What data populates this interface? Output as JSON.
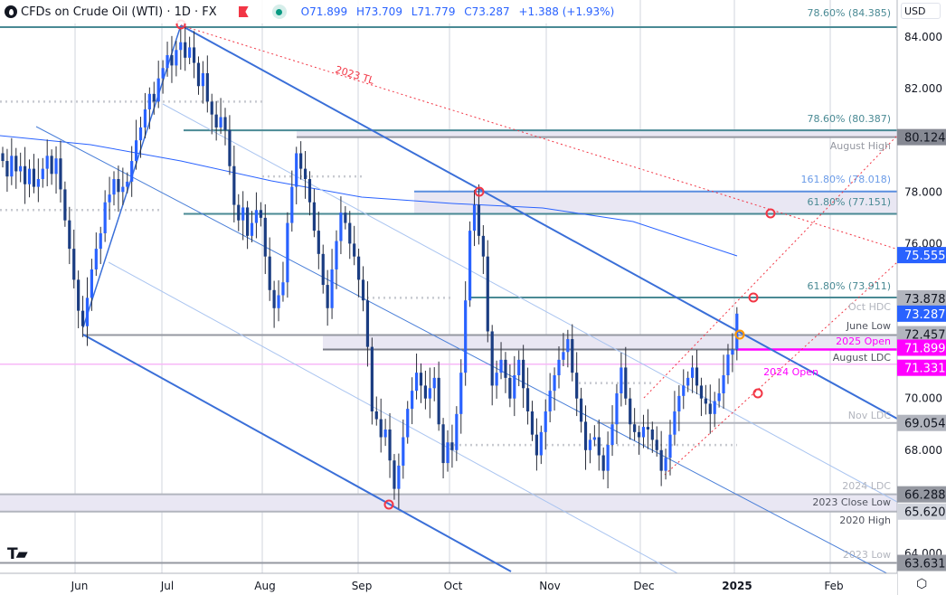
{
  "header": {
    "title": "CFDs on Crude Oil (WTI) · 1D · FX",
    "open": "O71.899",
    "high": "H73.709",
    "low": "L71.779",
    "close": "C73.287",
    "change": "+1.388 (+1.93%)"
  },
  "currency": "USD",
  "colors": {
    "up": "#2962ff",
    "down": "#1b3d82",
    "trendline": "#3a6fd8",
    "fib": "#4a8a94",
    "magenta": "#ff00ff",
    "red_marker": "#f23645",
    "orange_marker": "#ff9800"
  },
  "chart_data": {
    "type": "candlestick",
    "symbol": "CFDs on Crude Oil (WTI)",
    "timeframe": "1D",
    "ylim": [
      62.8,
      85
    ],
    "y_ticks": [
      "84.000",
      "82.000",
      "78.000",
      "76.000",
      "70.000",
      "68.000",
      "64.000"
    ],
    "x_ticks": [
      "Jun",
      "Jul",
      "Aug",
      "Sep",
      "Oct",
      "Nov",
      "Dec",
      "2025",
      "Feb"
    ],
    "closes": [
      79.2,
      78.6,
      79.4,
      78.8,
      79.0,
      78.3,
      78.9,
      78.2,
      78.5,
      78.9,
      79.4,
      78.7,
      79.3,
      78.1,
      76.9,
      75.8,
      74.6,
      73.4,
      72.8,
      73.9,
      75.0,
      75.8,
      76.4,
      77.6,
      77.9,
      78.5,
      78.0,
      78.2,
      78.4,
      79.2,
      80.0,
      80.5,
      81.2,
      81.8,
      81.5,
      82.4,
      82.8,
      83.3,
      82.9,
      83.5,
      83.8,
      83.2,
      83.6,
      83.0,
      82.1,
      82.6,
      81.5,
      81.0,
      80.5,
      80.9,
      80.4,
      79.0,
      77.5,
      76.9,
      77.4,
      76.3,
      76.8,
      77.3,
      77.0,
      75.5,
      74.2,
      73.5,
      74.0,
      74.5,
      76.8,
      78.2,
      79.5,
      78.9,
      78.5,
      77.6,
      76.5,
      75.6,
      74.4,
      73.5,
      75.0,
      76.1,
      77.2,
      76.8,
      76.0,
      75.5,
      74.6,
      73.8,
      72.0,
      69.5,
      69.2,
      68.5,
      68.8,
      67.6,
      66.5,
      67.4,
      68.5,
      69.6,
      70.3,
      71.0,
      70.5,
      70.0,
      70.4,
      70.8,
      69.0,
      67.5,
      68.3,
      68.0,
      69.4,
      71.0,
      73.8,
      76.5,
      77.5,
      76.3,
      75.5,
      72.6,
      70.5,
      71.0,
      71.5,
      70.8,
      70.0,
      70.9,
      71.5,
      70.4,
      69.5,
      68.6,
      67.8,
      68.7,
      69.5,
      70.3,
      70.9,
      71.5,
      71.8,
      72.3,
      71.0,
      70.0,
      69.1,
      68.0,
      68.4,
      68.5,
      67.8,
      67.2,
      68.2,
      69.0,
      70.2,
      71.2,
      70.0,
      69.0,
      68.7,
      68.5,
      68.9,
      68.8,
      68.4,
      68.0,
      67.2,
      67.7,
      68.6,
      69.5,
      70.1,
      70.5,
      70.8,
      71.2,
      70.5,
      70.0,
      69.8,
      69.4,
      69.9,
      70.2,
      70.9,
      71.7,
      71.9,
      73.287
    ],
    "levels": [
      {
        "price": 84.385,
        "label": "78.60% (84.385)"
      },
      {
        "price": 80.387,
        "label": "78.60% (80.387)"
      },
      {
        "price": 80.124,
        "label": "August High",
        "tag": "80.124"
      },
      {
        "price": 78.018,
        "label": "161.80% (78.018)"
      },
      {
        "price": 77.151,
        "label": "61.80% (77.151)"
      },
      {
        "price": 75.555,
        "tag": "75.555"
      },
      {
        "price": 73.911,
        "label": "61.80% (73.911)"
      },
      {
        "price": 73.878,
        "label": "Oct HDC",
        "tag": "73.878"
      },
      {
        "price": 73.287,
        "tag": "73.287"
      },
      {
        "price": 72.457,
        "label": "June Low",
        "tag": "72.457"
      },
      {
        "price": 71.899,
        "label": "2025 Open",
        "tag": "71.899"
      },
      {
        "price": 71.899,
        "label": "August LDC"
      },
      {
        "price": 71.331,
        "label": "2024 Open",
        "tag": "71.331"
      },
      {
        "price": 69.054,
        "label": "Nov LDC",
        "tag": "69.054"
      },
      {
        "price": 66.288,
        "label": "2024 LDC",
        "tag": "66.288"
      },
      {
        "price": 65.62,
        "label": "2023 Close Low",
        "tag": "65.620"
      },
      {
        "price": 65.62,
        "label": "2020 High"
      },
      {
        "price": 63.631,
        "label": "2023 Low",
        "tag": "63.631"
      }
    ],
    "annotations": {
      "tl_2023": "2023 TL"
    }
  }
}
